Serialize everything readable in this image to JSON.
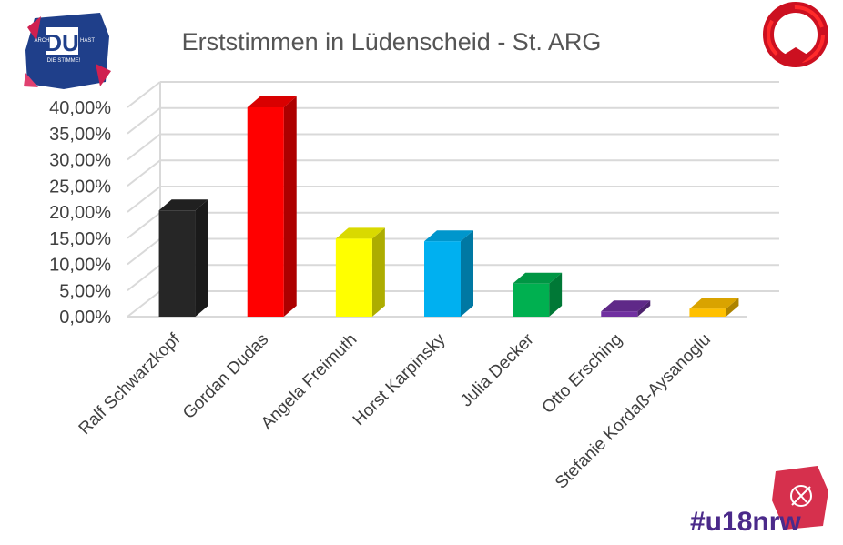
{
  "chart_data": {
    "type": "bar",
    "title": "Erststimmen in Lüdenscheid - St. ARG",
    "categories": [
      "Ralf Schwarzkopf",
      "Gordan Dudas",
      "Angela Freimuth",
      "Horst Karpinsky",
      "Julia Decker",
      "Otto Ersching",
      "Stefanie Kordaß-Aysanoglu"
    ],
    "values": [
      20.3,
      40.0,
      14.9,
      14.4,
      6.3,
      1.0,
      1.5
    ],
    "colors": [
      "#262626",
      "#ff0000",
      "#ffff00",
      "#00b0f0",
      "#00b050",
      "#7030a0",
      "#ffc000"
    ],
    "ylim": [
      0,
      40
    ],
    "yticks": [
      "0,00%",
      "5,00%",
      "10,00%",
      "15,00%",
      "20,00%",
      "25,00%",
      "30,00%",
      "35,00%",
      "40,00%"
    ],
    "grid": true,
    "xlabel": "",
    "ylabel": ""
  },
  "logos": {
    "left_main": "DU",
    "left_top_a": "ARCH",
    "left_top_b": "HAST",
    "left_sub": "DIE STIMME!",
    "right_icon": "handshake-ring-icon",
    "bottom_brand": "#u18nrw"
  }
}
